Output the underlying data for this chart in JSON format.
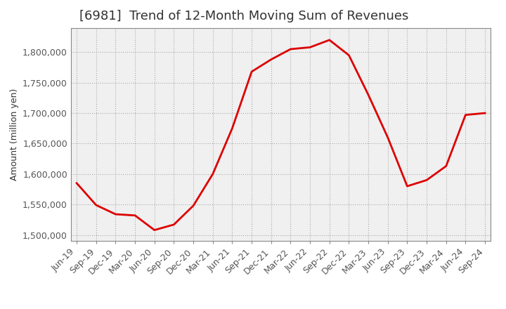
{
  "title": "[6981]  Trend of 12-Month Moving Sum of Revenues",
  "ylabel": "Amount (million yen)",
  "line_color": "#dd0000",
  "background_color": "#ffffff",
  "plot_bg_color": "#f0f0f0",
  "grid_color": "#aaaaaa",
  "x_labels": [
    "Jun-19",
    "Sep-19",
    "Dec-19",
    "Mar-20",
    "Jun-20",
    "Sep-20",
    "Dec-20",
    "Mar-21",
    "Jun-21",
    "Sep-21",
    "Dec-21",
    "Mar-22",
    "Jun-22",
    "Sep-22",
    "Dec-22",
    "Mar-23",
    "Jun-23",
    "Sep-23",
    "Dec-23",
    "Mar-24",
    "Jun-24",
    "Sep-24"
  ],
  "values": [
    1585000,
    1549000,
    1534000,
    1532000,
    1508000,
    1517000,
    1548000,
    1600000,
    1675000,
    1768000,
    1788000,
    1805000,
    1808000,
    1820000,
    1795000,
    1730000,
    1660000,
    1580000,
    1590000,
    1613000,
    1697000,
    1700000
  ],
  "ylim_min": 1490000,
  "ylim_max": 1840000,
  "yticks": [
    1500000,
    1550000,
    1600000,
    1650000,
    1700000,
    1750000,
    1800000
  ],
  "title_fontsize": 13,
  "tick_fontsize": 9,
  "label_fontsize": 9
}
